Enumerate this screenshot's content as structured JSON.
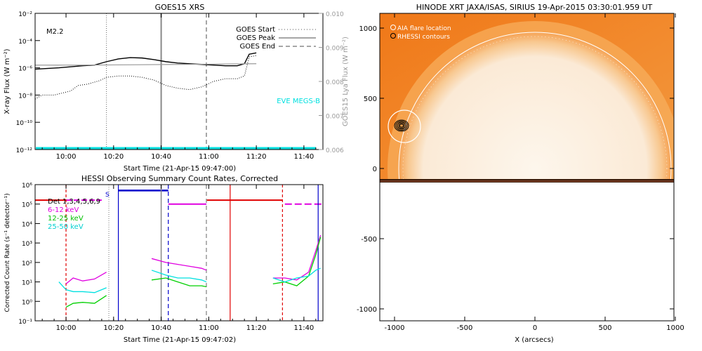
{
  "chart_data": [
    {
      "type": "line",
      "title": "GOES15 XRS",
      "xlabel": "Start Time (21-Apr-15 09:47:00)",
      "ylabel": "X-ray Flux (W m⁻²)",
      "ylabel_right": "GOES15 Lya Flux (W m⁻²)",
      "x_ticks": [
        "10:00",
        "10:20",
        "10:40",
        "11:00",
        "11:20",
        "11:40"
      ],
      "y_ticks": [
        "10⁻²",
        "10⁻⁴",
        "10⁻⁶",
        "10⁻⁸",
        "10⁻¹⁰",
        "10⁻¹²"
      ],
      "y_ticks_right": [
        "0.010",
        "0.009",
        "0.008",
        "0.007",
        "0.006"
      ],
      "flare_class": "M2.2",
      "legend": [
        {
          "label": "GOES Start",
          "style": "dotted"
        },
        {
          "label": "GOES Peak",
          "style": "solid"
        },
        {
          "label": "GOES End",
          "style": "dashed"
        }
      ],
      "eve_label": "EVE MEGS-B",
      "markers": {
        "start": "10:17",
        "peak": "10:40",
        "end": "10:59"
      },
      "series": [
        {
          "name": "long",
          "x": [
            0,
            10,
            20,
            25,
            30,
            35,
            40,
            45,
            50,
            55,
            60,
            65,
            70,
            75,
            80,
            85,
            88,
            90,
            93
          ],
          "log10_flux": [
            -6.1,
            -6.0,
            -5.85,
            -5.8,
            -5.55,
            -5.35,
            -5.25,
            -5.28,
            -5.4,
            -5.55,
            -5.65,
            -5.7,
            -5.75,
            -5.8,
            -5.85,
            -5.85,
            -5.7,
            -5.0,
            -4.9
          ]
        },
        {
          "name": "short",
          "x": [
            0,
            3,
            8,
            15,
            18,
            22,
            27,
            30,
            35,
            40,
            45,
            50,
            55,
            60,
            65,
            70,
            75,
            80,
            85,
            88,
            90,
            93
          ],
          "log10_flux": [
            -8.3,
            -8.0,
            -8.0,
            -7.7,
            -7.3,
            -7.2,
            -6.95,
            -6.7,
            -6.6,
            -6.6,
            -6.7,
            -6.9,
            -7.3,
            -7.5,
            -7.6,
            -7.4,
            -7.0,
            -6.8,
            -6.8,
            -6.6,
            -5.2,
            -5.1
          ]
        },
        {
          "name": "lya",
          "x": [
            0,
            20,
            40,
            60,
            80,
            93
          ],
          "log10_flux": [
            -5.8,
            -5.8,
            -5.78,
            -5.75,
            -5.72,
            -5.7
          ]
        }
      ]
    },
    {
      "type": "line",
      "title": "HESSI Observing Summary Count Rates, Corrected",
      "xlabel": "Start Time (21-Apr-15 09:47:02)",
      "ylabel": "Corrected Count Rate (s⁻¹ detector⁻¹)",
      "x_ticks": [
        "10:00",
        "10:20",
        "10:40",
        "11:00",
        "11:20",
        "11:40"
      ],
      "y_ticks": [
        "10⁶",
        "10⁵",
        "10⁴",
        "10³",
        "10²",
        "10¹",
        "10⁰",
        "10⁻¹"
      ],
      "legend_title": "Det 1,3,4,5,6,9",
      "legend": [
        {
          "label": "6-12 keV",
          "color": "#e000e0"
        },
        {
          "label": "12-25 keV",
          "color": "#00d000"
        },
        {
          "label": "25-50 keV",
          "color": "#00e0e0"
        }
      ],
      "s_label": "S",
      "series": [
        {
          "name": "6-12 keV",
          "segments": [
            {
              "x": [
                13,
                16,
                20,
                25,
                30
              ],
              "log10": [
                0.9,
                1.2,
                1.05,
                1.15,
                1.5
              ]
            },
            {
              "x": [
                49,
                55,
                60,
                65,
                70,
                72
              ],
              "log10": [
                2.2,
                2.0,
                1.9,
                1.8,
                1.7,
                1.6
              ]
            },
            {
              "x": [
                100,
                105,
                110,
                115,
                118,
                120
              ],
              "log10": [
                1.2,
                1.2,
                1.1,
                1.5,
                2.6,
                3.4
              ]
            }
          ]
        },
        {
          "name": "12-25 keV",
          "segments": [
            {
              "x": [
                13,
                16,
                20,
                25,
                30
              ],
              "log10": [
                -0.3,
                -0.1,
                -0.05,
                -0.1,
                0.3
              ]
            },
            {
              "x": [
                49,
                55,
                60,
                65,
                70,
                72
              ],
              "log10": [
                1.1,
                1.2,
                1.0,
                0.8,
                0.8,
                0.75
              ]
            },
            {
              "x": [
                100,
                105,
                110,
                115,
                118,
                120
              ],
              "log10": [
                0.9,
                1.0,
                0.8,
                1.3,
                2.4,
                3.3
              ]
            }
          ]
        },
        {
          "name": "25-50 keV",
          "segments": [
            {
              "x": [
                10,
                13,
                16,
                20,
                25,
                30
              ],
              "log10": [
                1.0,
                0.6,
                0.5,
                0.5,
                0.45,
                0.7
              ]
            },
            {
              "x": [
                49,
                55,
                60,
                65,
                70,
                72
              ],
              "log10": [
                1.6,
                1.35,
                1.2,
                1.2,
                1.1,
                1.0
              ]
            },
            {
              "x": [
                100,
                105,
                110,
                115,
                118,
                120
              ],
              "log10": [
                1.2,
                1.0,
                1.2,
                1.3,
                1.6,
                1.7
              ]
            }
          ]
        }
      ]
    },
    {
      "type": "image",
      "title": "HINODE XRT JAXA/ISAS, SIRIUS 19-Apr-2015 03:30:01.959 UT",
      "xlabel": "X (arcsecs)",
      "x_ticks": [
        "-1000",
        "-500",
        "0",
        "500",
        "1000"
      ],
      "y_ticks": [
        "1000",
        "500",
        "0",
        "-500",
        "-1000"
      ],
      "legend": [
        {
          "label": "AIA flare location",
          "color": "#ffffff"
        },
        {
          "label": "RHESSI contours",
          "color": "#000000"
        }
      ],
      "flare_location_arcsec": [
        -930,
        290
      ]
    }
  ]
}
